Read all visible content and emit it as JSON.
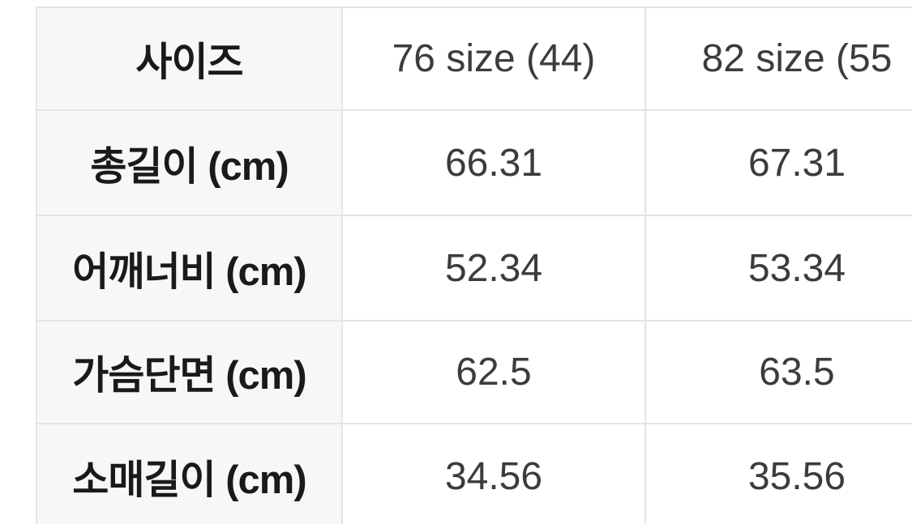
{
  "size_chart": {
    "header": {
      "label": "사이즈",
      "col1": "76 size (44)",
      "col2": "82 size (55"
    },
    "rows": [
      {
        "label": "총길이 (cm)",
        "values": [
          "66.31",
          "67.31"
        ]
      },
      {
        "label": "어깨너비 (cm)",
        "values": [
          "52.34",
          "53.34"
        ]
      },
      {
        "label": "가슴단면 (cm)",
        "values": [
          "62.5",
          "63.5"
        ]
      },
      {
        "label": "소매길이 (cm)",
        "values": [
          "34.56",
          "35.56"
        ]
      }
    ],
    "colors": {
      "label_column_bg": "#f7f7f7",
      "value_cell_bg": "#ffffff",
      "border": "#e4e4e4",
      "label_text": "#1a1a1a",
      "value_text": "#3c3c3c"
    }
  }
}
